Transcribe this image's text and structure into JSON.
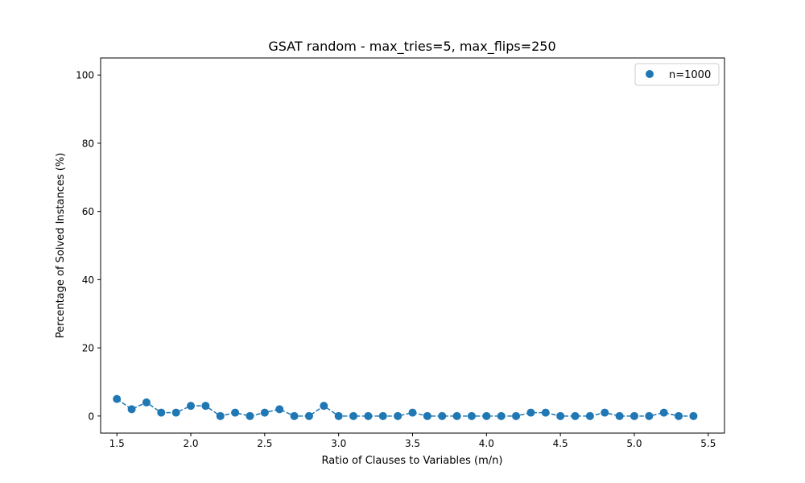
{
  "chart_data": {
    "type": "scatter",
    "title": "GSAT random - max_tries=5, max_flips=250",
    "xlabel": "Ratio of Clauses to Variables (m/n)",
    "ylabel": "Percentage of Solved Instances (%)",
    "xlim": [
      1.39,
      5.61
    ],
    "ylim": [
      -5,
      105
    ],
    "xticks": [
      1.5,
      2.0,
      2.5,
      3.0,
      3.5,
      4.0,
      4.5,
      5.0,
      5.5
    ],
    "xtick_labels": [
      "1.5",
      "2.0",
      "2.5",
      "3.0",
      "3.5",
      "4.0",
      "4.5",
      "5.0",
      "5.5"
    ],
    "yticks": [
      0,
      20,
      40,
      60,
      80,
      100
    ],
    "ytick_labels": [
      "0",
      "20",
      "40",
      "60",
      "80",
      "100"
    ],
    "grid": false,
    "legend_position": "top-right",
    "line_style": "dashed",
    "series": [
      {
        "name": "n=1000",
        "color": "#1f77b4",
        "x": [
          1.5,
          1.6,
          1.7,
          1.8,
          1.9,
          2.0,
          2.1,
          2.2,
          2.3,
          2.4,
          2.5,
          2.6,
          2.7,
          2.8,
          2.9,
          3.0,
          3.1,
          3.2,
          3.3,
          3.4,
          3.5,
          3.6,
          3.7,
          3.8,
          3.9,
          4.0,
          4.1,
          4.2,
          4.3,
          4.4,
          4.5,
          4.6,
          4.7,
          4.8,
          4.9,
          5.0,
          5.1,
          5.2,
          5.3,
          5.4
        ],
        "y": [
          5,
          2,
          4,
          1,
          1,
          3,
          3,
          0,
          1,
          0,
          1,
          2,
          0,
          0,
          3,
          0,
          0,
          0,
          0,
          0,
          1,
          0,
          0,
          0,
          0,
          0,
          0,
          0,
          1,
          1,
          0,
          0,
          0,
          1,
          0,
          0,
          0,
          1,
          0,
          0
        ]
      }
    ]
  }
}
